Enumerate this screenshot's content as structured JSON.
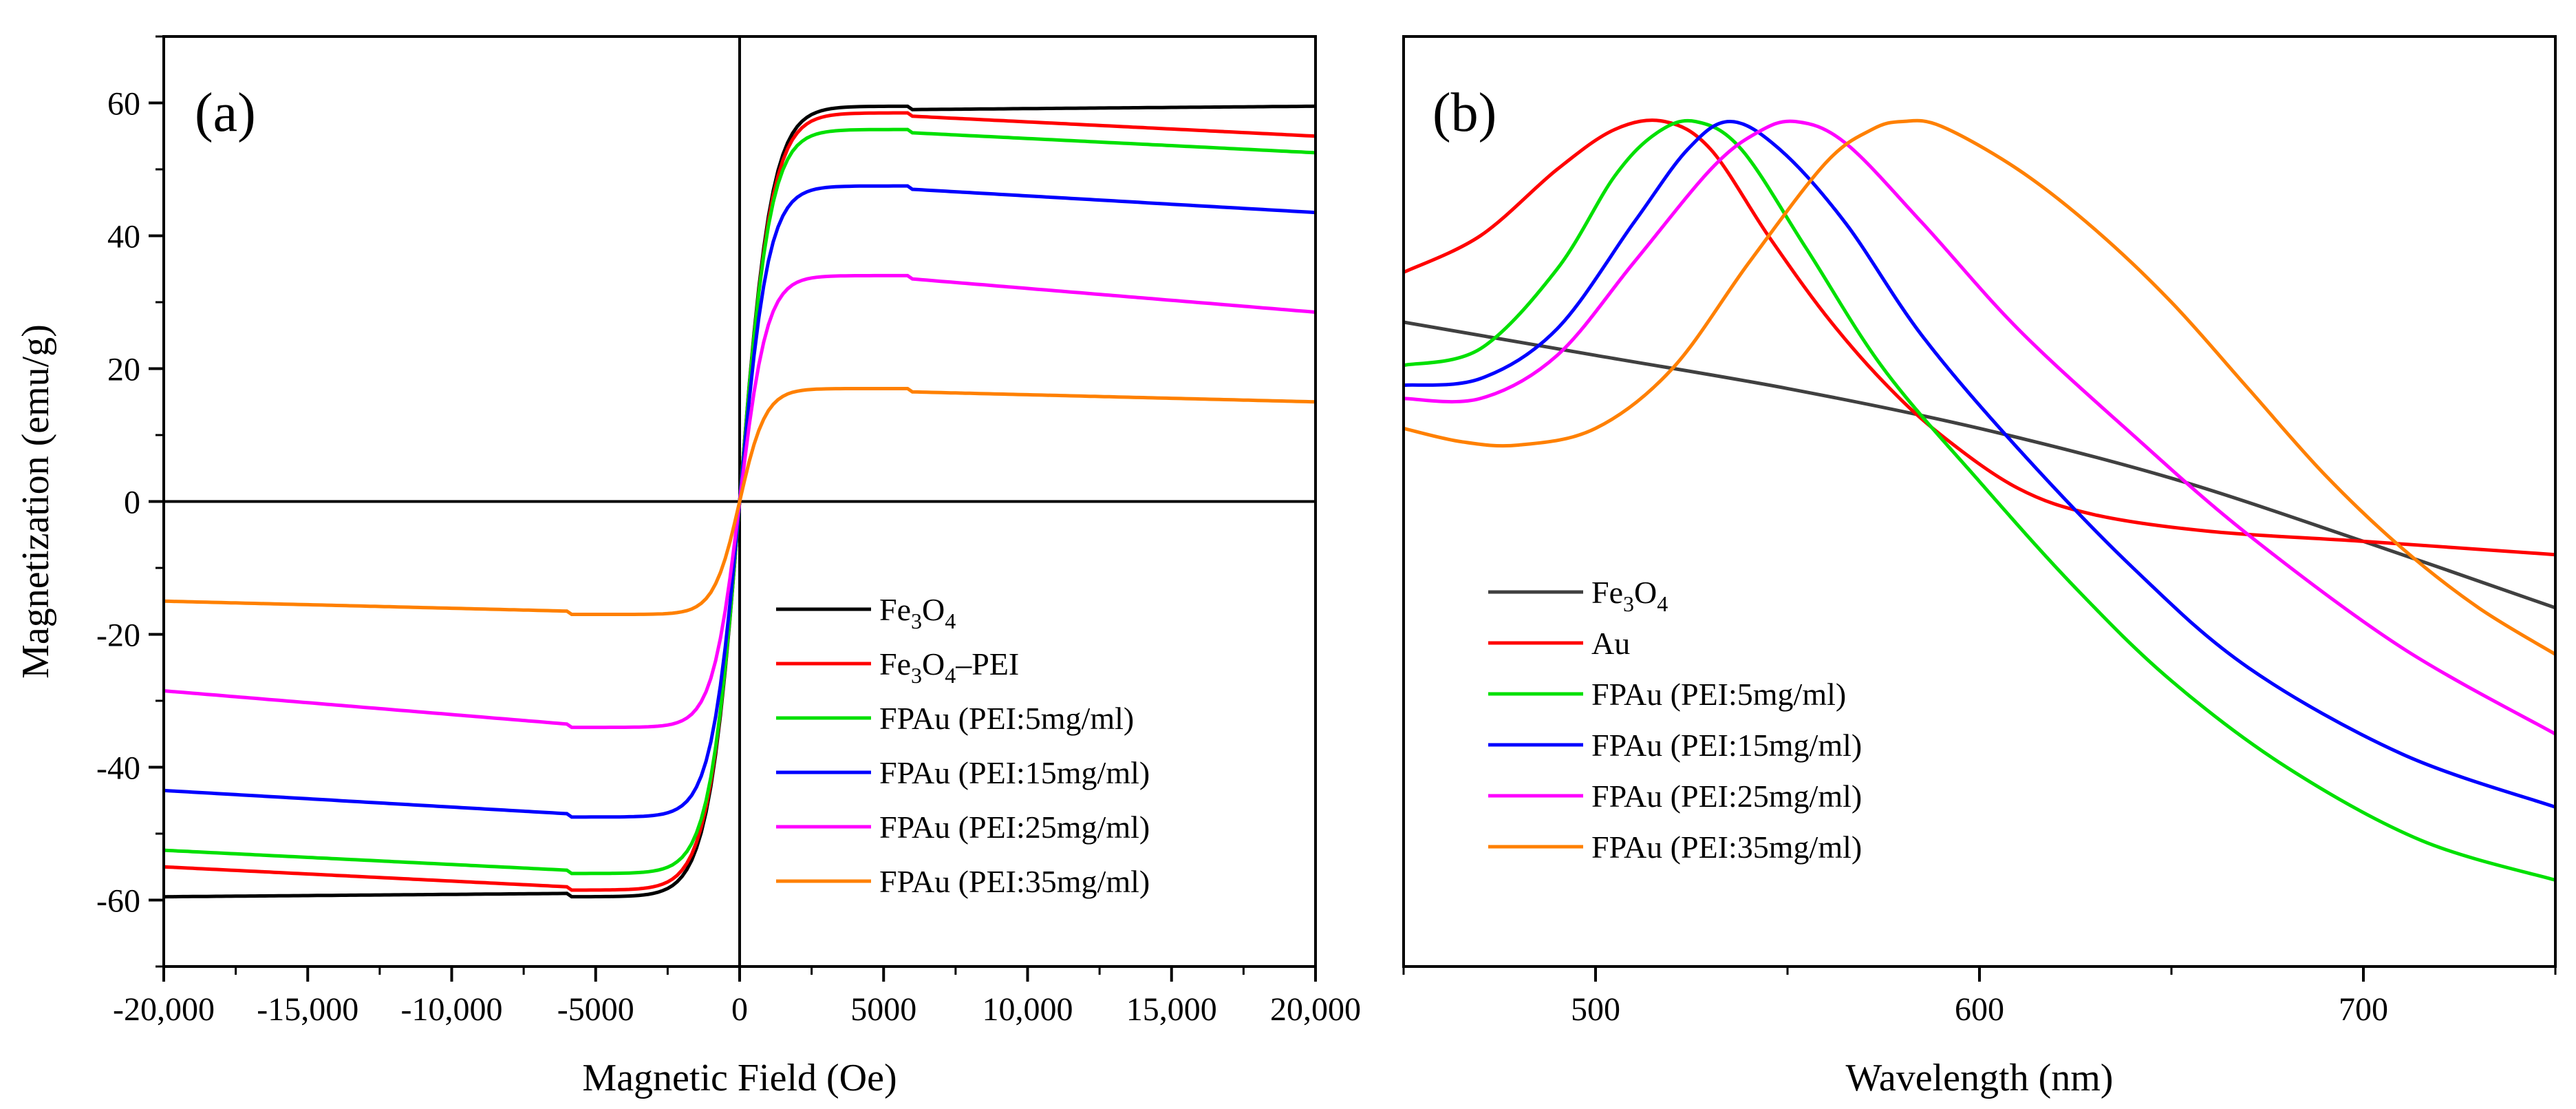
{
  "chart_data": [
    {
      "type": "line",
      "panel_label": "(a)",
      "xlabel": "Magnetic Field (Oe)",
      "ylabel": "Magnetization (emu/g)",
      "xlim": [
        -20000,
        20000
      ],
      "ylim": [
        -70,
        70
      ],
      "x_ticks": [
        -20000,
        -15000,
        -10000,
        -5000,
        0,
        5000,
        10000,
        15000,
        20000
      ],
      "x_tick_labels": [
        "-20,000",
        "-15,000",
        "-10,000",
        "-5000",
        "0",
        "5000",
        "10,000",
        "15,000",
        "20,000"
      ],
      "y_ticks": [
        -60,
        -40,
        -20,
        0,
        20,
        40,
        60
      ],
      "y_tick_labels": [
        "-60",
        "-40",
        "-20",
        "0",
        "20",
        "40",
        "60"
      ],
      "zero_lines": true,
      "legend_position": "bottom-right",
      "series": [
        {
          "name": "Fe3O4",
          "legend": {
            "pre": "Fe",
            "sub1": "3",
            "mid": "O",
            "sub2": "4",
            "post": ""
          },
          "color": "#000000",
          "ms": 59.5,
          "k": 1100,
          "ms_mid": 59,
          "end": 59.5
        },
        {
          "name": "Fe3O4–PEI",
          "legend": {
            "pre": "Fe",
            "sub1": "3",
            "mid": "O",
            "sub2": "4",
            "post": "–PEI"
          },
          "color": "#ff0000",
          "ms": 58.5,
          "k": 1100,
          "ms_mid": 58,
          "end": 55
        },
        {
          "name": "FPAu (PEI:5mg/ml)",
          "legend": {
            "pre": "FPAu (PEI:5mg/ml)"
          },
          "color": "#00e000",
          "ms": 56,
          "k": 1050,
          "ms_mid": 55.5,
          "end": 52.5
        },
        {
          "name": "FPAu (PEI:15mg/ml)",
          "legend": {
            "pre": "FPAu (PEI:15mg/ml)"
          },
          "color": "#0000ff",
          "ms": 47.5,
          "k": 1000,
          "ms_mid": 47,
          "end": 43.5
        },
        {
          "name": "FPAu (PEI:25mg/ml)",
          "legend": {
            "pre": "FPAu (PEI:25mg/ml)"
          },
          "color": "#ff00ff",
          "ms": 34,
          "k": 950,
          "ms_mid": 33.5,
          "end": 28.5
        },
        {
          "name": "FPAu (PEI:35mg/ml)",
          "legend": {
            "pre": "FPAu (PEI:35mg/ml)"
          },
          "color": "#ff8000",
          "ms": 17,
          "k": 900,
          "ms_mid": 16.5,
          "end": 15
        }
      ]
    },
    {
      "type": "line",
      "panel_label": "(b)",
      "xlabel": "Wavelength (nm)",
      "ylabel": "",
      "xlim": [
        450,
        750
      ],
      "ylim": [
        -70,
        70
      ],
      "x_ticks": [
        500,
        600,
        700
      ],
      "x_tick_labels": [
        "500",
        "600",
        "700"
      ],
      "y_ticks": [],
      "legend_position": "lower-left",
      "series": [
        {
          "name": "Fe3O4",
          "legend": {
            "pre": "Fe",
            "sub1": "3",
            "mid": "O",
            "sub2": "4",
            "post": ""
          },
          "color": "#404040",
          "points": [
            [
              450,
              27
            ],
            [
              500,
              22
            ],
            [
              550,
              17
            ],
            [
              600,
              11
            ],
            [
              650,
              3.5
            ],
            [
              700,
              -6
            ],
            [
              750,
              -16
            ]
          ]
        },
        {
          "name": "Au",
          "legend": {
            "pre": "Au"
          },
          "color": "#ff0000",
          "points": [
            [
              450,
              34.5
            ],
            [
              470,
              40
            ],
            [
              490,
              50
            ],
            [
              505,
              56
            ],
            [
              518,
              57.2
            ],
            [
              530,
              53
            ],
            [
              545,
              40
            ],
            [
              560,
              28
            ],
            [
              575,
              18
            ],
            [
              590,
              10
            ],
            [
              610,
              2
            ],
            [
              630,
              -2
            ],
            [
              660,
              -4.5
            ],
            [
              700,
              -6
            ],
            [
              750,
              -8
            ]
          ]
        },
        {
          "name": "FPAu (PEI:5mg/ml)",
          "legend": {
            "pre": "FPAu (PEI:5mg/ml)"
          },
          "color": "#00e000",
          "points": [
            [
              450,
              20.5
            ],
            [
              470,
              23
            ],
            [
              490,
              35
            ],
            [
              505,
              49
            ],
            [
              516,
              55.5
            ],
            [
              526,
              57.2
            ],
            [
              538,
              53
            ],
            [
              555,
              38
            ],
            [
              575,
              20
            ],
            [
              600,
              3
            ],
            [
              625,
              -13
            ],
            [
              650,
              -27
            ],
            [
              680,
              -40
            ],
            [
              715,
              -51
            ],
            [
              750,
              -57
            ]
          ]
        },
        {
          "name": "FPAu (PEI:15mg/ml)",
          "legend": {
            "pre": "FPAu (PEI:15mg/ml)"
          },
          "color": "#0000ff",
          "points": [
            [
              450,
              17.5
            ],
            [
              470,
              18.5
            ],
            [
              490,
              26
            ],
            [
              510,
              42
            ],
            [
              524,
              53
            ],
            [
              535,
              57.2
            ],
            [
              548,
              53
            ],
            [
              565,
              42
            ],
            [
              585,
              25
            ],
            [
              610,
              8
            ],
            [
              640,
              -10
            ],
            [
              670,
              -25
            ],
            [
              710,
              -38
            ],
            [
              750,
              -46
            ]
          ]
        },
        {
          "name": "FPAu (PEI:25mg/ml)",
          "legend": {
            "pre": "FPAu (PEI:25mg/ml)"
          },
          "color": "#ff00ff",
          "points": [
            [
              450,
              15.5
            ],
            [
              470,
              15.5
            ],
            [
              490,
              22
            ],
            [
              510,
              36
            ],
            [
              530,
              50
            ],
            [
              542,
              55.5
            ],
            [
              552,
              57.2
            ],
            [
              565,
              54
            ],
            [
              585,
              42
            ],
            [
              610,
              26
            ],
            [
              640,
              10
            ],
            [
              670,
              -5
            ],
            [
              710,
              -22
            ],
            [
              750,
              -35
            ]
          ]
        },
        {
          "name": "FPAu (PEI:35mg/ml)",
          "legend": {
            "pre": "FPAu (PEI:35mg/ml)"
          },
          "color": "#ff8000",
          "points": [
            [
              450,
              11
            ],
            [
              465,
              9
            ],
            [
              480,
              8.5
            ],
            [
              500,
              11
            ],
            [
              520,
              20
            ],
            [
              540,
              36
            ],
            [
              560,
              51
            ],
            [
              572,
              56
            ],
            [
              580,
              57.2
            ],
            [
              590,
              56.5
            ],
            [
              610,
              50
            ],
            [
              630,
              41
            ],
            [
              650,
              30
            ],
            [
              670,
              17
            ],
            [
              690,
              4
            ],
            [
              710,
              -7
            ],
            [
              730,
              -16
            ],
            [
              750,
              -23
            ]
          ]
        }
      ]
    }
  ]
}
